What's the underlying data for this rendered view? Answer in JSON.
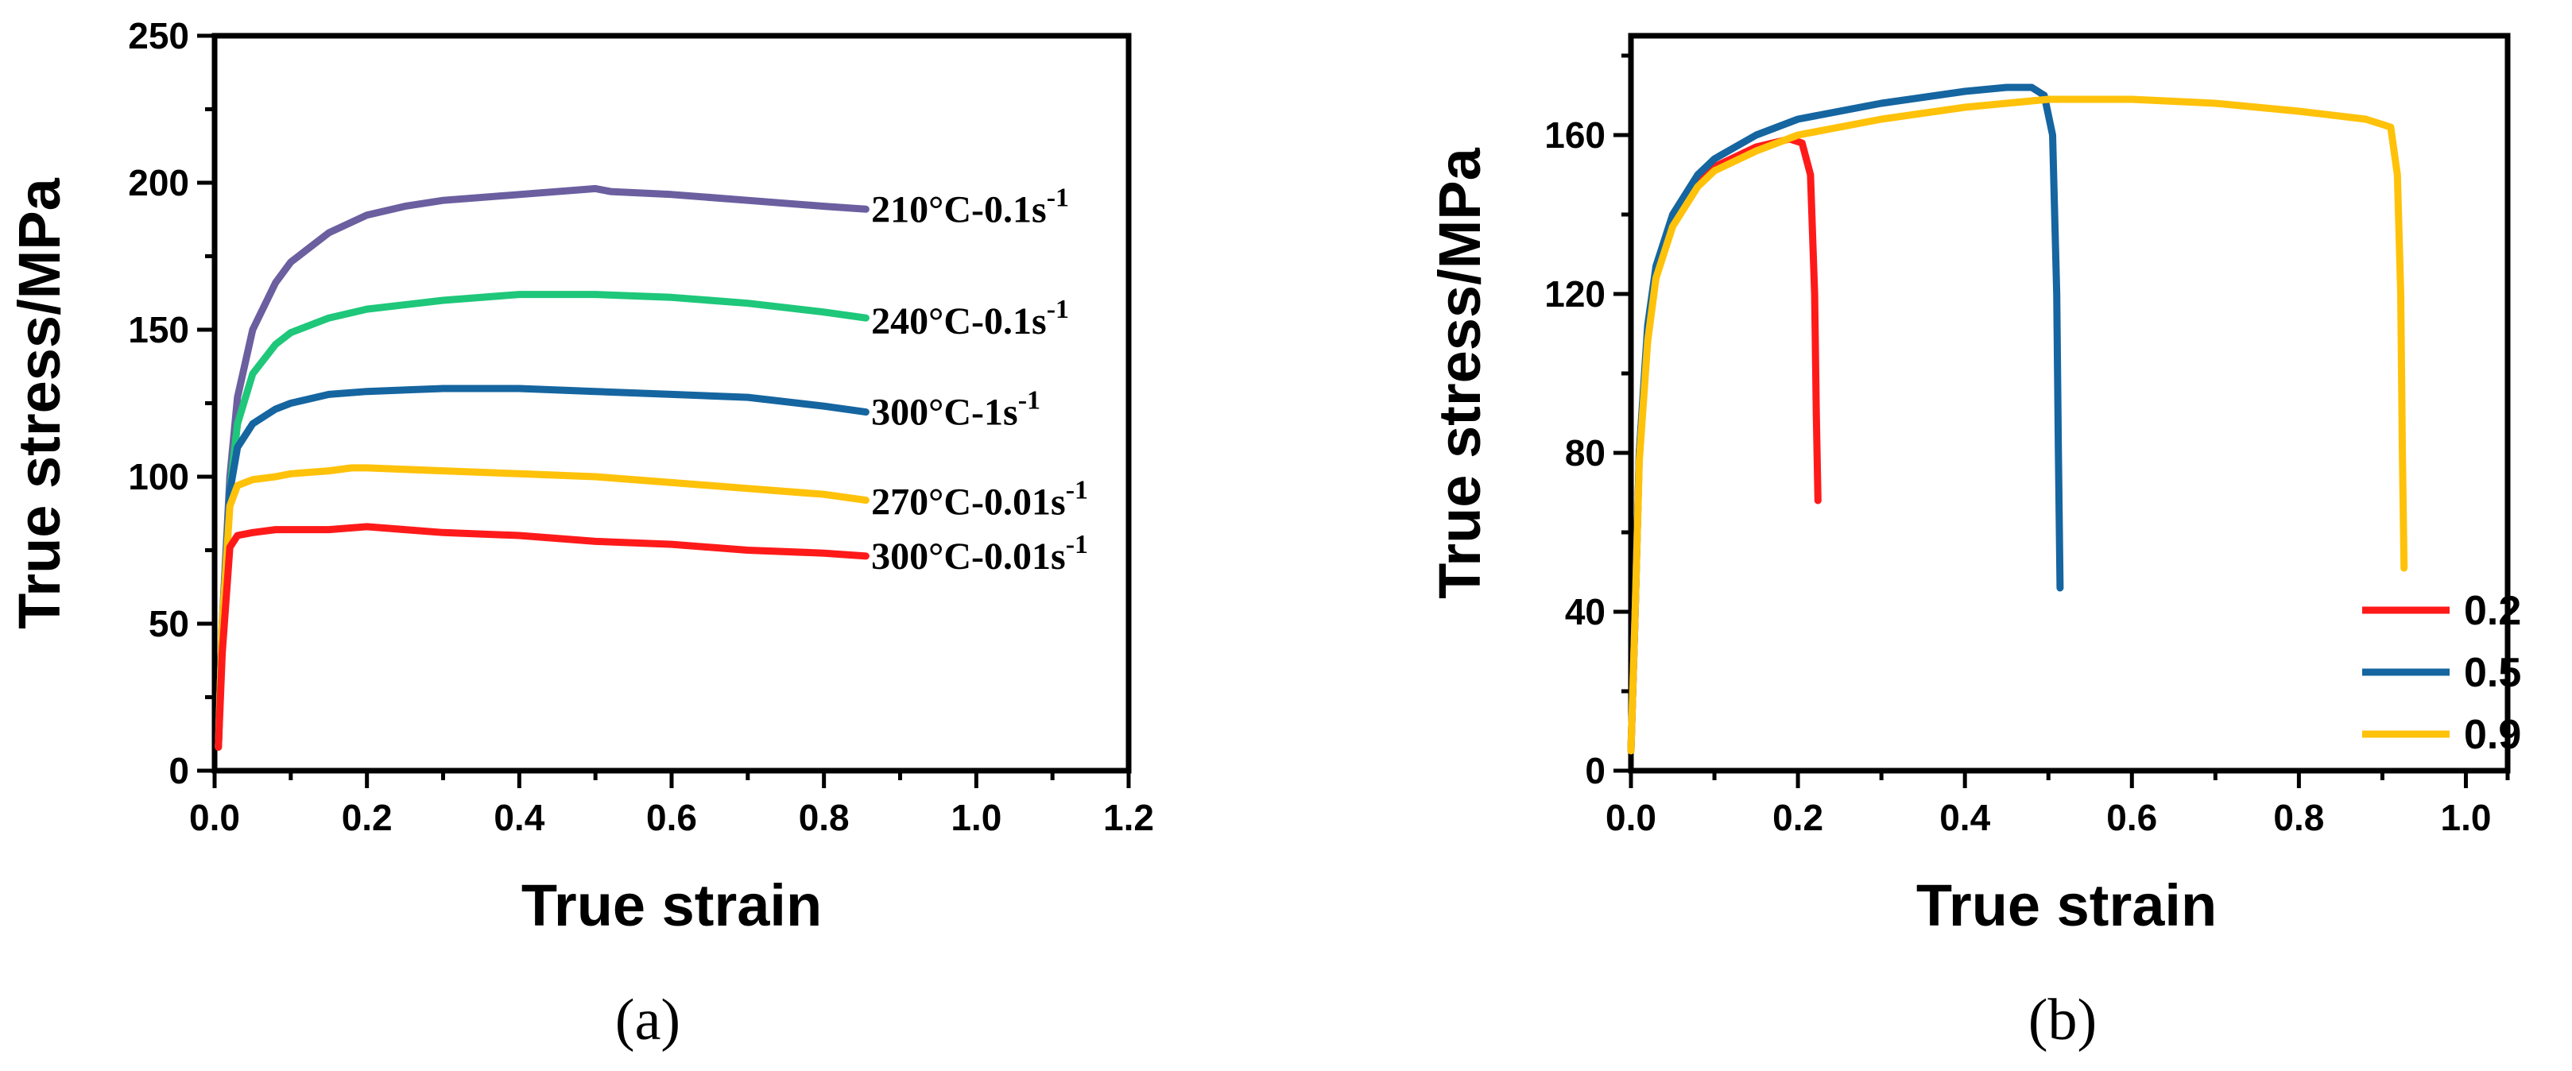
{
  "chart_data": [
    {
      "type": "line",
      "panel": "(a)",
      "xlabel": "True strain",
      "ylabel": "True stress/MPa",
      "xlim": [
        0,
        1.2
      ],
      "ylim": [
        0,
        250
      ],
      "xticks": [
        0.0,
        0.2,
        0.4,
        0.6,
        0.8,
        1.0,
        1.2
      ],
      "xtick_labels": [
        "0.0",
        "0.2",
        "0.4",
        "0.6",
        "0.8",
        "1.0",
        "1.2"
      ],
      "yticks": [
        0,
        50,
        100,
        150,
        200,
        250
      ],
      "ytick_labels": [
        "0",
        "50",
        "100",
        "150",
        "200",
        "250"
      ],
      "series": [
        {
          "name": "210°C-0.1s",
          "label_main": "210°C-0.1s",
          "label_sup": "-1",
          "color": "#6B5FA0",
          "x": [
            0.005,
            0.01,
            0.02,
            0.03,
            0.05,
            0.08,
            0.1,
            0.15,
            0.2,
            0.25,
            0.3,
            0.4,
            0.5,
            0.52,
            0.6,
            0.7,
            0.8,
            0.855
          ],
          "y": [
            8,
            50,
            100,
            127,
            150,
            166,
            173,
            183,
            189,
            192,
            194,
            196,
            198,
            197,
            196,
            194,
            192,
            191
          ]
        },
        {
          "name": "240°C-0.1s",
          "label_main": "240°C-0.1s",
          "label_sup": "-1",
          "color": "#1EC77A",
          "x": [
            0.005,
            0.01,
            0.02,
            0.03,
            0.05,
            0.08,
            0.1,
            0.15,
            0.2,
            0.3,
            0.4,
            0.5,
            0.6,
            0.7,
            0.8,
            0.855
          ],
          "y": [
            8,
            50,
            95,
            118,
            135,
            145,
            149,
            154,
            157,
            160,
            162,
            162,
            161,
            159,
            156,
            154
          ]
        },
        {
          "name": "300°C-1s",
          "label_main": "300°C-1s",
          "label_sup": "-1",
          "color": "#1565A0",
          "x": [
            0.005,
            0.01,
            0.02,
            0.03,
            0.05,
            0.08,
            0.1,
            0.15,
            0.2,
            0.3,
            0.4,
            0.5,
            0.6,
            0.7,
            0.8,
            0.855
          ],
          "y": [
            8,
            50,
            95,
            110,
            118,
            123,
            125,
            128,
            129,
            130,
            130,
            129,
            128,
            127,
            124,
            122
          ]
        },
        {
          "name": "270°C-0.01s",
          "label_main": "270°C-0.01s",
          "label_sup": "-1",
          "color": "#FFC20A",
          "x": [
            0.005,
            0.01,
            0.02,
            0.03,
            0.05,
            0.08,
            0.1,
            0.15,
            0.18,
            0.2,
            0.3,
            0.4,
            0.5,
            0.6,
            0.7,
            0.8,
            0.855
          ],
          "y": [
            8,
            50,
            90,
            97,
            99,
            100,
            101,
            102,
            103,
            103,
            102,
            101,
            100,
            98,
            96,
            94,
            92
          ]
        },
        {
          "name": "300°C-0.01s",
          "label_main": "300°C-0.01s",
          "label_sup": "-1",
          "color": "#FF1A1A",
          "x": [
            0.005,
            0.01,
            0.02,
            0.03,
            0.05,
            0.08,
            0.1,
            0.15,
            0.2,
            0.25,
            0.3,
            0.4,
            0.5,
            0.6,
            0.7,
            0.8,
            0.855
          ],
          "y": [
            8,
            40,
            76,
            80,
            81,
            82,
            82,
            82,
            83,
            82,
            81,
            80,
            78,
            77,
            75,
            74,
            73
          ]
        }
      ]
    },
    {
      "type": "line",
      "panel": "(b)",
      "xlabel": "True strain",
      "ylabel": "True stress/MPa",
      "xlim": [
        0,
        1.05
      ],
      "ylim": [
        0,
        185
      ],
      "xticks": [
        0.0,
        0.2,
        0.4,
        0.6,
        0.8,
        1.0
      ],
      "xtick_labels": [
        "0.0",
        "0.2",
        "0.4",
        "0.6",
        "0.8",
        "1.0"
      ],
      "yticks": [
        0,
        40,
        80,
        120,
        160
      ],
      "ytick_labels": [
        "0",
        "40",
        "80",
        "120",
        "160"
      ],
      "legend": {
        "location": "bottom-right",
        "entries": [
          "0.2",
          "0.5",
          "0.9"
        ]
      },
      "series": [
        {
          "name": "0.2",
          "color": "#FF1A1A",
          "x": [
            0.0,
            0.005,
            0.01,
            0.02,
            0.03,
            0.05,
            0.08,
            0.1,
            0.15,
            0.19,
            0.205,
            0.215,
            0.22,
            0.222,
            0.224
          ],
          "y": [
            5,
            40,
            80,
            110,
            125,
            138,
            148,
            152,
            157,
            159,
            158,
            150,
            120,
            90,
            68
          ]
        },
        {
          "name": "0.5",
          "color": "#1565A0",
          "x": [
            0.0,
            0.005,
            0.01,
            0.02,
            0.03,
            0.05,
            0.08,
            0.1,
            0.15,
            0.2,
            0.3,
            0.4,
            0.45,
            0.48,
            0.495,
            0.505,
            0.51,
            0.512,
            0.514
          ],
          "y": [
            5,
            40,
            80,
            112,
            127,
            140,
            150,
            154,
            160,
            164,
            168,
            171,
            172,
            172,
            170,
            160,
            120,
            80,
            46
          ]
        },
        {
          "name": "0.9",
          "color": "#FFC20A",
          "x": [
            0.0,
            0.005,
            0.01,
            0.02,
            0.03,
            0.05,
            0.08,
            0.1,
            0.15,
            0.2,
            0.3,
            0.4,
            0.5,
            0.6,
            0.7,
            0.8,
            0.88,
            0.91,
            0.918,
            0.922,
            0.924,
            0.926
          ],
          "y": [
            5,
            40,
            78,
            108,
            124,
            137,
            147,
            151,
            156,
            160,
            164,
            167,
            169,
            169,
            168,
            166,
            164,
            162,
            150,
            120,
            80,
            51
          ]
        }
      ]
    }
  ]
}
